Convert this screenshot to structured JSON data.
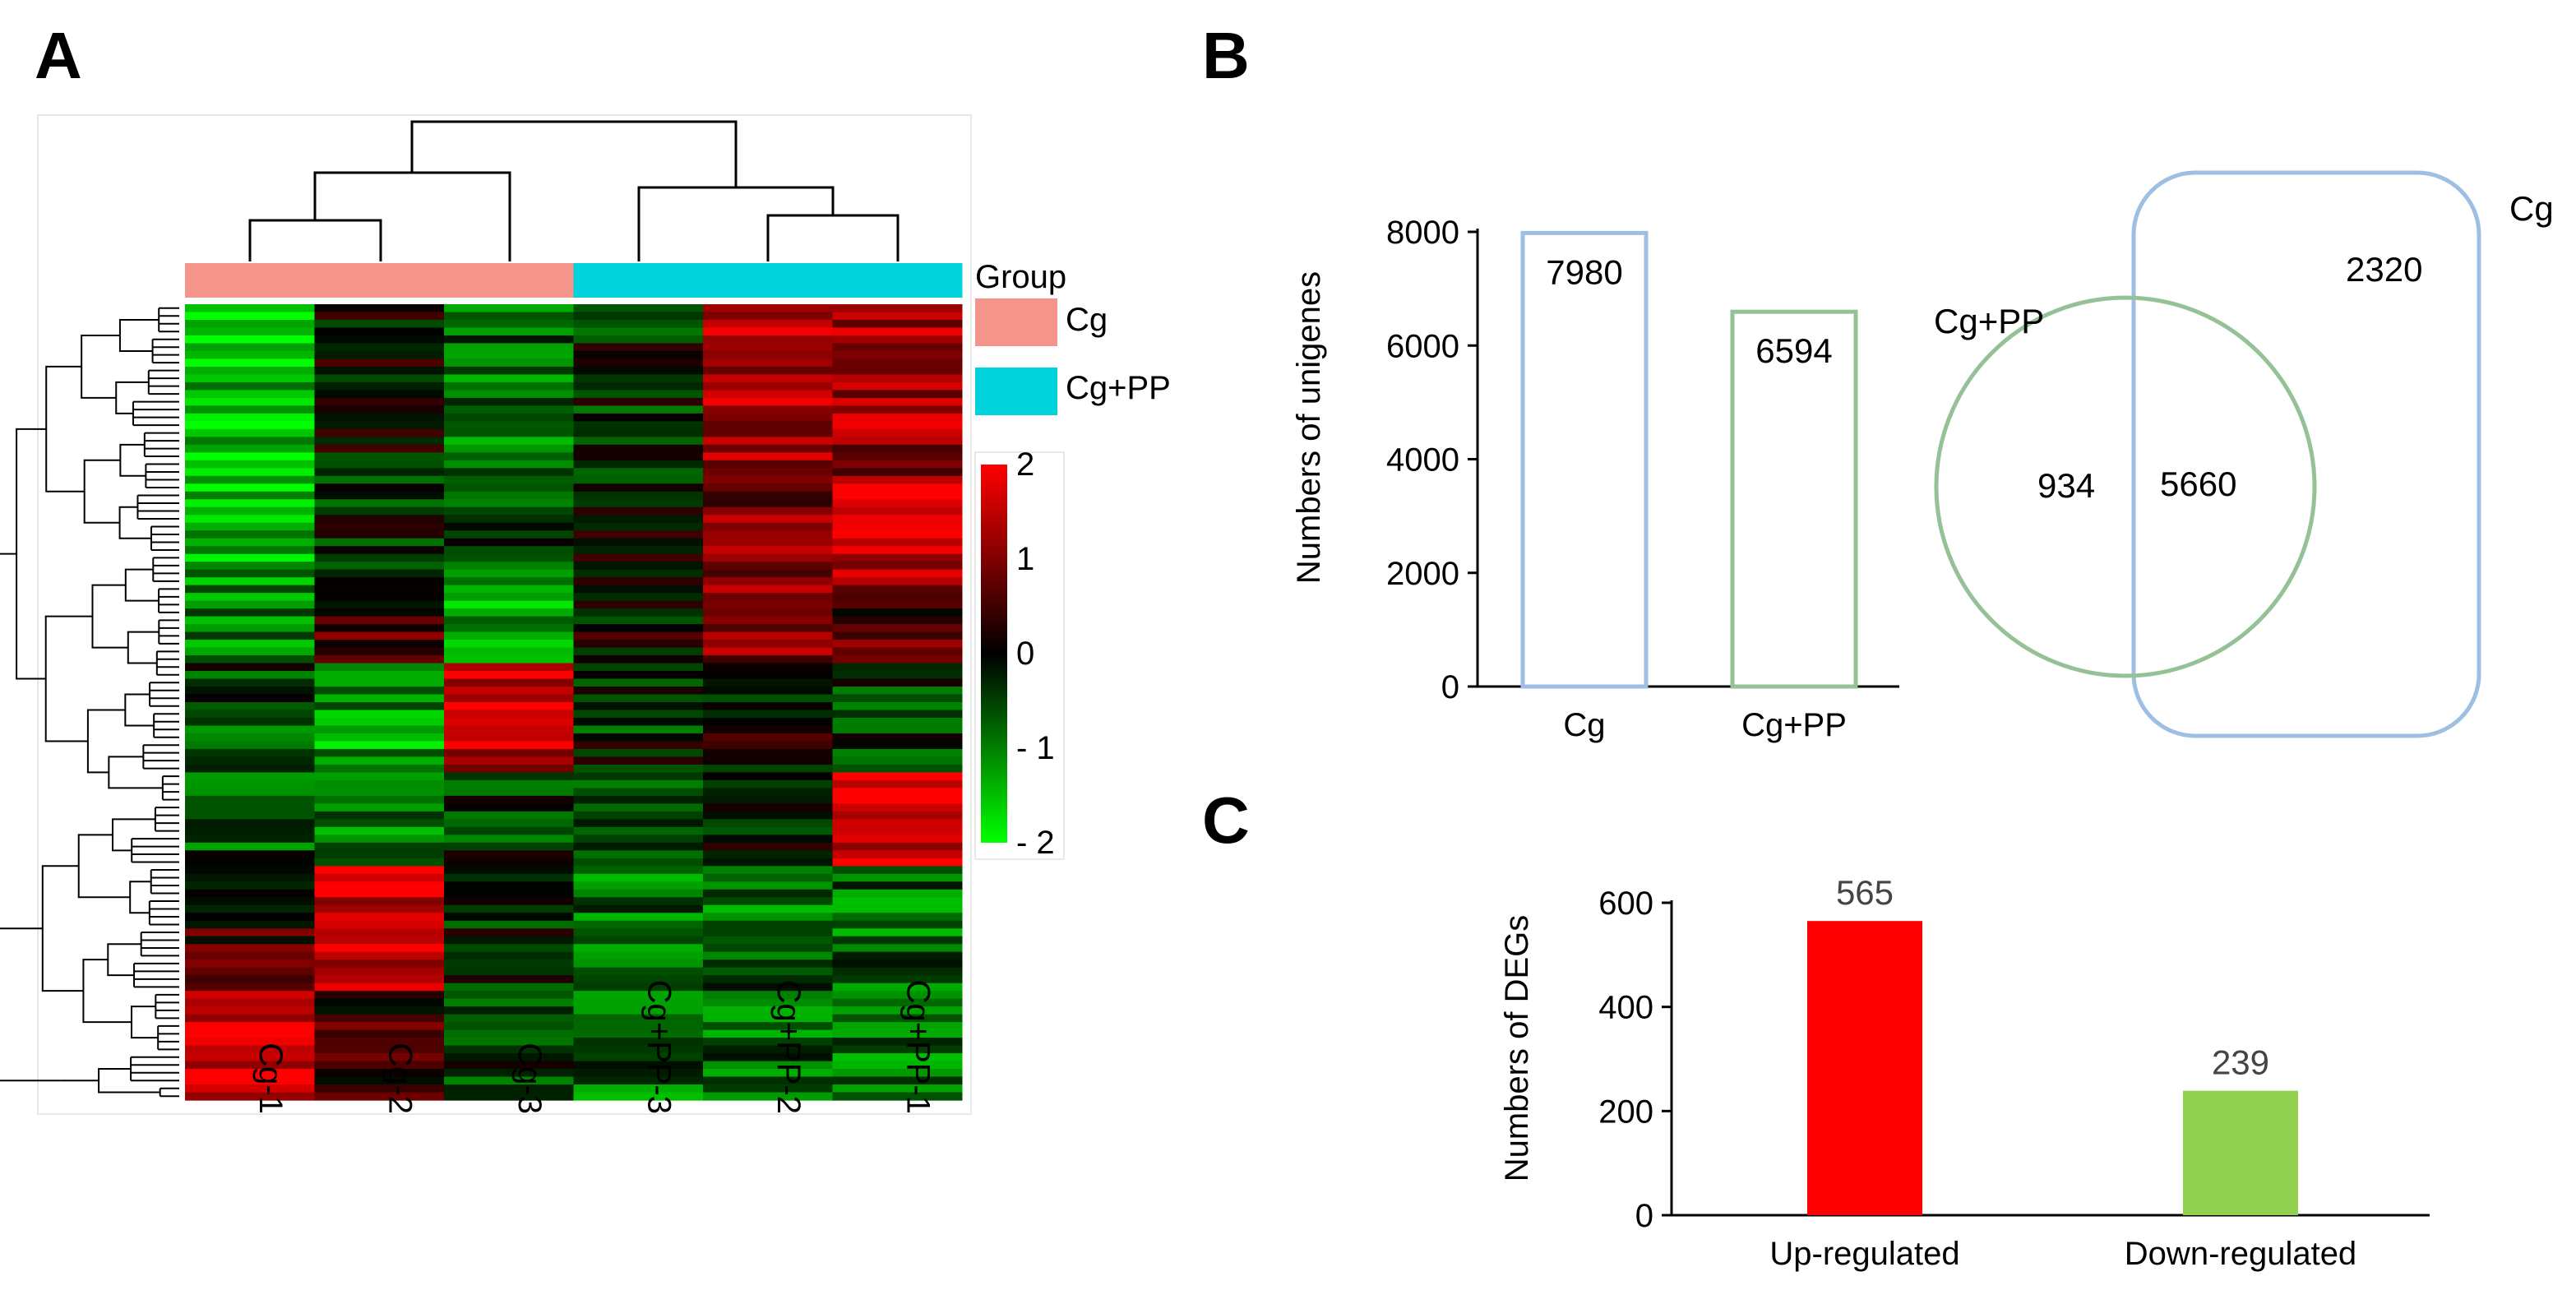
{
  "panels": {
    "a": "A",
    "b": "B",
    "c": "C"
  },
  "heatmap": {
    "samples": [
      "Cg-1",
      "Cg-2",
      "Cg-3",
      "Cg+PP-3",
      "Cg+PP-2",
      "Cg+PP-1"
    ],
    "sample_groups": [
      "Cg",
      "Cg",
      "Cg",
      "Cg+PP",
      "Cg+PP",
      "Cg+PP"
    ],
    "group_title": "Group",
    "groups": [
      {
        "label": "Cg",
        "color": "#f4948a"
      },
      {
        "label": "Cg+PP",
        "color": "#00d3db"
      }
    ],
    "scale": {
      "labels": [
        "2",
        "1",
        "0",
        "- 1",
        "- 2"
      ],
      "min": -2,
      "max": 2,
      "low_color": "#00ff00",
      "mid_color": "#000000",
      "high_color": "#ff0000"
    }
  },
  "chart_data": [
    {
      "type": "heatmap",
      "title": "",
      "columns": [
        "Cg-1",
        "Cg-2",
        "Cg-3",
        "Cg+PP-3",
        "Cg+PP-2",
        "Cg+PP-1"
      ],
      "row_clusters_approx": [
        {
          "rows": 22,
          "values": [
            -1.5,
            0.0,
            -0.8,
            -0.3,
            1.3,
            1.2
          ]
        },
        {
          "rows": 14,
          "values": [
            -1.3,
            -0.3,
            -0.6,
            -0.2,
            1.0,
            1.6
          ]
        },
        {
          "rows": 10,
          "values": [
            -1.0,
            0.5,
            -1.2,
            0.0,
            1.0,
            0.6
          ]
        },
        {
          "rows": 14,
          "values": [
            -0.5,
            -1.2,
            1.6,
            -0.3,
            0.0,
            -0.4
          ]
        },
        {
          "rows": 12,
          "values": [
            -0.6,
            -0.9,
            -0.4,
            -0.5,
            0.0,
            1.7
          ]
        },
        {
          "rows": 16,
          "values": [
            0.4,
            1.7,
            -0.2,
            -0.9,
            -0.8,
            -0.8
          ]
        },
        {
          "rows": 14,
          "values": [
            1.7,
            0.4,
            -0.5,
            -0.8,
            -0.8,
            -0.8
          ]
        }
      ],
      "colorbar_range": [
        -2,
        2
      ]
    },
    {
      "type": "bar",
      "title": "",
      "categories": [
        "Cg",
        "Cg+PP"
      ],
      "values": [
        7980,
        6594
      ],
      "value_labels": [
        "7980",
        "6594"
      ],
      "xlabel": "",
      "ylabel": "Numbers  of unigenes",
      "ylim": [
        0,
        8000
      ],
      "yticks": [
        "0",
        "2000",
        "4000",
        "6000",
        "8000"
      ],
      "colors": [
        "#9dbfe2",
        "#94c196"
      ]
    },
    {
      "type": "venn",
      "sets": [
        {
          "label": "Cg",
          "color": "#9dbfe2"
        },
        {
          "label": "Cg+PP",
          "color": "#94c196"
        }
      ],
      "only_cg_pp": "934",
      "intersection": "5660",
      "only_cg": "2320"
    },
    {
      "type": "bar",
      "title": "",
      "categories": [
        "Up-regulated",
        "Down-regulated"
      ],
      "values": [
        565,
        239
      ],
      "value_labels": [
        "565",
        "239"
      ],
      "xlabel": "",
      "ylabel": "Numbers  of DEGs",
      "ylim": [
        0,
        600
      ],
      "yticks": [
        "0",
        "200",
        "400",
        "600"
      ],
      "colors": [
        "#ff0000",
        "#92d050"
      ]
    }
  ]
}
